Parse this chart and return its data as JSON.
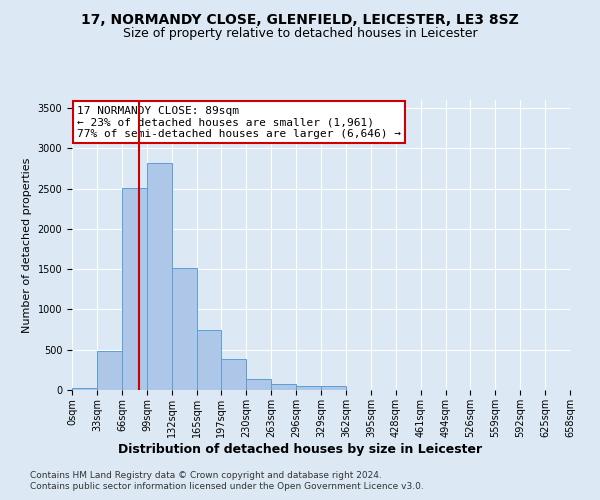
{
  "title": "17, NORMANDY CLOSE, GLENFIELD, LEICESTER, LE3 8SZ",
  "subtitle": "Size of property relative to detached houses in Leicester",
  "xlabel": "Distribution of detached houses by size in Leicester",
  "ylabel": "Number of detached properties",
  "bin_edges": [
    0,
    33,
    66,
    99,
    132,
    165,
    197,
    230,
    263,
    296,
    329,
    362,
    395,
    428,
    461,
    494,
    526,
    559,
    592,
    625,
    658
  ],
  "bar_heights": [
    20,
    480,
    2510,
    2820,
    1520,
    750,
    390,
    140,
    75,
    55,
    55,
    0,
    0,
    0,
    0,
    0,
    0,
    0,
    0,
    0
  ],
  "bar_color": "#aec6e8",
  "bar_edge_color": "#5a9fd4",
  "property_line_x": 89,
  "property_line_color": "#cc0000",
  "annotation_line1": "17 NORMANDY CLOSE: 89sqm",
  "annotation_line2": "← 23% of detached houses are smaller (1,961)",
  "annotation_line3": "77% of semi-detached houses are larger (6,646) →",
  "annotation_box_color": "#ffffff",
  "annotation_box_edge_color": "#cc0000",
  "ylim": [
    0,
    3600
  ],
  "yticks": [
    0,
    500,
    1000,
    1500,
    2000,
    2500,
    3000,
    3500
  ],
  "tick_labels": [
    "0sqm",
    "33sqm",
    "66sqm",
    "99sqm",
    "132sqm",
    "165sqm",
    "197sqm",
    "230sqm",
    "263sqm",
    "296sqm",
    "329sqm",
    "362sqm",
    "395sqm",
    "428sqm",
    "461sqm",
    "494sqm",
    "526sqm",
    "559sqm",
    "592sqm",
    "625sqm",
    "658sqm"
  ],
  "footer_line1": "Contains HM Land Registry data © Crown copyright and database right 2024.",
  "footer_line2": "Contains public sector information licensed under the Open Government Licence v3.0.",
  "background_color": "#dce9f5",
  "plot_bg_color": "#dce9f5",
  "grid_color": "#ffffff",
  "title_fontsize": 10,
  "subtitle_fontsize": 9,
  "xlabel_fontsize": 9,
  "ylabel_fontsize": 8,
  "tick_fontsize": 7,
  "annotation_fontsize": 8,
  "footer_fontsize": 6.5
}
